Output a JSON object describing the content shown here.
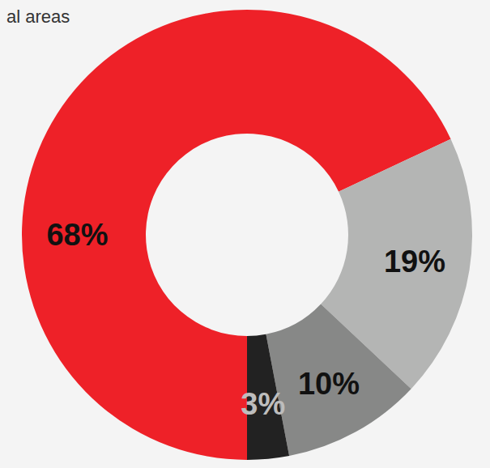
{
  "chart_data": {
    "type": "donut",
    "title": "al areas",
    "values": [
      68,
      19,
      10,
      3
    ],
    "value_labels": [
      "68%",
      "19%",
      "10%",
      "3%"
    ],
    "colors": [
      "#ee2128",
      "#b4b5b4",
      "#878887",
      "#222222"
    ],
    "data_labels": true
  }
}
